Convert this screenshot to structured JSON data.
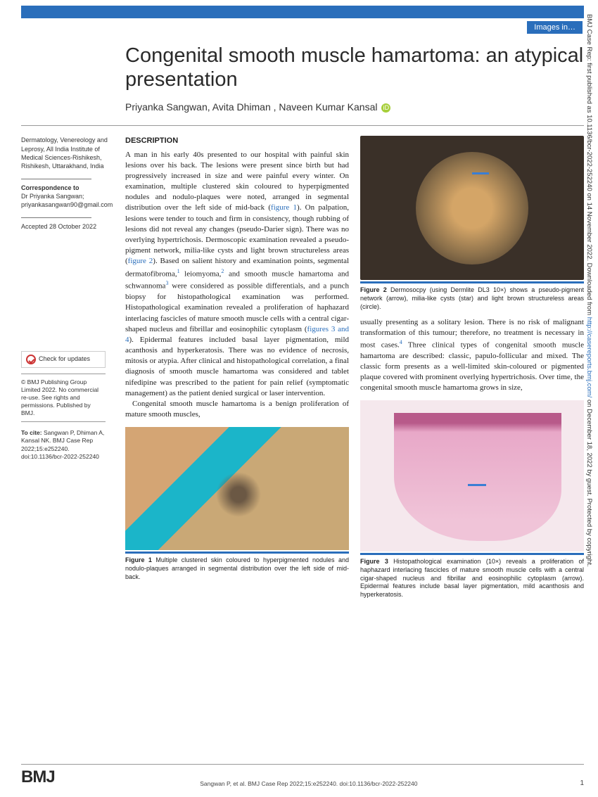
{
  "category": "Images in…",
  "title": "Congenital smooth muscle hamartoma: an atypical presentation",
  "authors": "Priyanka Sangwan, Avita Dhiman      , Naveen Kumar Kansal",
  "affiliation": "Dermatology, Venereology and Leprosy, All India Institute of Medical Sciences-Rishikesh, Rishikesh, Uttarakhand, India",
  "correspondence_heading": "Correspondence to",
  "correspondence": "Dr Priyanka Sangwan; priyankasangwan90@gmail.com",
  "accepted": "Accepted 28 October 2022",
  "check_updates": "Check for updates",
  "copyright": "© BMJ Publishing Group Limited 2022. No commercial re-use. See rights and permissions. Published by BMJ.",
  "cite_label": "To cite:",
  "cite_text": " Sangwan P, Dhiman A, Kansal NK. BMJ Case Rep 2022;15:e252240. doi:10.1136/bcr-2022-252240",
  "description_heading": "DESCRIPTION",
  "para1a": "A man in his early 40s presented to our hospital with painful skin lesions over his back. The lesions were present since birth but had progressively increased in size and were painful every winter. On examination, multiple clustered skin coloured to hyperpigmented nodules and nodulo-plaques were noted, arranged in segmental distribution over the left side of mid-back (",
  "fig1_link": "figure 1",
  "para1b": "). On palpation, lesions were tender to touch and firm in consistency, though rubbing of lesions did not reveal any changes (pseudo-Darier sign). There was no overlying hypertrichosis. Dermoscopic examination revealed a pseudo-pigment network, milia-like cysts and light brown structureless areas (",
  "fig2_link": "figure 2",
  "para1c": "). Based on salient history and examination points, segmental dermatofibroma,",
  "para1d": " leiomyoma,",
  "para1e": " and smooth muscle hamartoma and schwannoma",
  "para1f": " were considered as possible differentials, and a punch biopsy for histopathological examination was performed. Histopathological examination revealed a proliferation of haphazard interlacing fascicles of mature smooth muscle cells with a central cigar-shaped nucleus and fibrillar and eosinophilic cytoplasm (",
  "fig34_link": "figures 3 and 4",
  "para1g": "). Epidermal features included basal layer pigmentation, mild acanthosis and hyperkeratosis. There was no evidence of necrosis, mitosis or atypia. After clinical and histopathological correlation, a final diagnosis of smooth muscle hamartoma was considered and tablet nifedipine was prescribed to the patient for pain relief (symptomatic management) as the patient denied surgical or laser intervention.",
  "para2": "Congenital smooth muscle hamartoma is a benign proliferation of mature smooth muscles,",
  "para3a": "usually presenting as a solitary lesion. There is no risk of malignant transformation of this tumour; therefore, no treatment is necessary in most cases.",
  "para3b": " Three clinical types of congenital smooth muscle hamartoma are described: classic, papulo-follicular and mixed. The classic form presents as a well-limited skin-coloured or pigmented plaque covered with prominent overlying hypertrichosis. Over time, the congenital smooth muscle hamartoma grows in size,",
  "fig1_caption_bold": "Figure 1",
  "fig1_caption": "   Multiple clustered skin coloured to hyperpigmented nodules and nodulo-plaques arranged in segmental distribution over the left side of mid-back.",
  "fig2_caption_bold": "Figure 2",
  "fig2_caption": "   Dermosocpy (using Dermlite DL3 10×) shows a pseudo-pigment network (arrow), milia-like cysts (star) and light brown structureless areas (circle).",
  "fig3_caption_bold": "Figure 3",
  "fig3_caption": "   Histopathological examination (10×) reveals a proliferation of haphazard interlacing fascicles of mature smooth muscle cells with a central cigar-shaped nucleus and fibrillar and eosinophilic cytoplasm (arrow). Epidermal features include basal layer pigmentation, mild acanthosis and hyperkeratosis.",
  "footer_cite": "Sangwan P, et al. BMJ Case Rep 2022;15:e252240. doi:10.1136/bcr-2022-252240",
  "page_num": "1",
  "bmj": "BMJ",
  "side_a": "BMJ Case Rep: first published as 10.1136/bcr-2022-252240 on 14 November 2022. Downloaded from ",
  "side_link": "http://casereports.bmj.com/",
  "side_b": " on December 18, 2022 by guest. Protected by copyright."
}
